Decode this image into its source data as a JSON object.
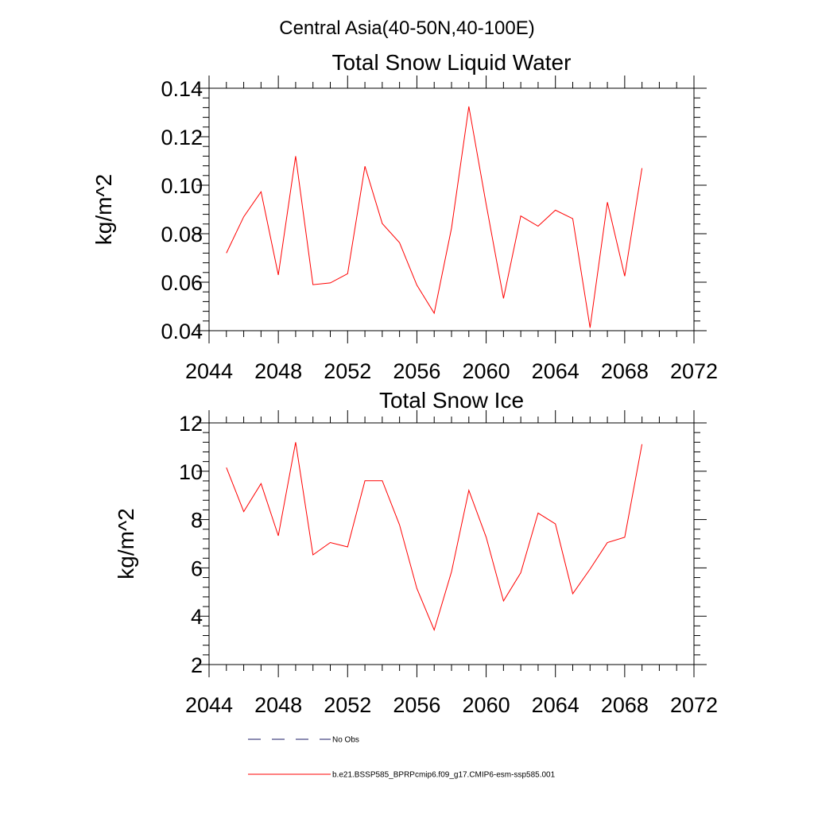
{
  "figure": {
    "title": "Central Asia(40-50N,40-100E)"
  },
  "legend": [
    {
      "label": "No Obs",
      "color": "#1a1a66",
      "style": "dashed"
    },
    {
      "label": "b.e21.BSSP585_BPRPcmip6.f09_g17.CMIP6-esm-ssp585.001",
      "color": "#ff0000",
      "style": "solid"
    }
  ],
  "chart_data": [
    {
      "type": "line",
      "title": "Total Snow Liquid Water",
      "xlabel": "",
      "ylabel": "kg/m^2",
      "xlim": [
        2044,
        2072
      ],
      "ylim": [
        0.04,
        0.14
      ],
      "xticks": [
        2044,
        2048,
        2052,
        2056,
        2060,
        2064,
        2068,
        2072
      ],
      "xtick_labels": [
        "2044",
        "2048",
        "2052",
        "2056",
        "2060",
        "2064",
        "2068",
        "2072"
      ],
      "yticks": [
        0.04,
        0.06,
        0.08,
        0.1,
        0.12,
        0.14
      ],
      "ytick_labels": [
        "0.04",
        "0.06",
        "0.08",
        "0.10",
        "0.12",
        "0.14"
      ],
      "grid": false,
      "series": [
        {
          "color": "#ff0000",
          "x": [
            2045,
            2046,
            2047,
            2048,
            2049,
            2050,
            2051,
            2052,
            2053,
            2054,
            2055,
            2056,
            2057,
            2058,
            2059,
            2060,
            2061,
            2062,
            2063,
            2064,
            2065,
            2066,
            2067,
            2068,
            2069
          ],
          "y": [
            0.072,
            0.087,
            0.0973,
            0.063,
            0.112,
            0.059,
            0.0597,
            0.0635,
            0.1078,
            0.0842,
            0.0763,
            0.0588,
            0.0472,
            0.0823,
            0.1325,
            0.0921,
            0.0533,
            0.0873,
            0.0831,
            0.0897,
            0.0862,
            0.0412,
            0.093,
            0.0625,
            0.107
          ]
        }
      ]
    },
    {
      "type": "line",
      "title": "Total Snow Ice",
      "xlabel": "",
      "ylabel": "kg/m^2",
      "xlim": [
        2044,
        2072
      ],
      "ylim": [
        2,
        12
      ],
      "xticks": [
        2044,
        2048,
        2052,
        2056,
        2060,
        2064,
        2068,
        2072
      ],
      "xtick_labels": [
        "2044",
        "2048",
        "2052",
        "2056",
        "2060",
        "2064",
        "2068",
        "2072"
      ],
      "yticks": [
        2,
        4,
        6,
        8,
        10,
        12
      ],
      "ytick_labels": [
        "2",
        "4",
        "6",
        "8",
        "10",
        "12"
      ],
      "grid": false,
      "series": [
        {
          "color": "#ff0000",
          "x": [
            2045,
            2046,
            2047,
            2048,
            2049,
            2050,
            2051,
            2052,
            2053,
            2054,
            2055,
            2056,
            2057,
            2058,
            2059,
            2060,
            2061,
            2062,
            2063,
            2064,
            2065,
            2066,
            2067,
            2068,
            2069
          ],
          "y": [
            10.15,
            8.33,
            9.49,
            7.33,
            11.2,
            6.54,
            7.05,
            6.87,
            9.61,
            9.61,
            7.78,
            5.15,
            3.43,
            5.84,
            9.21,
            7.27,
            4.63,
            5.8,
            8.27,
            7.82,
            4.93,
            5.95,
            7.05,
            7.27,
            11.12
          ]
        }
      ]
    }
  ]
}
